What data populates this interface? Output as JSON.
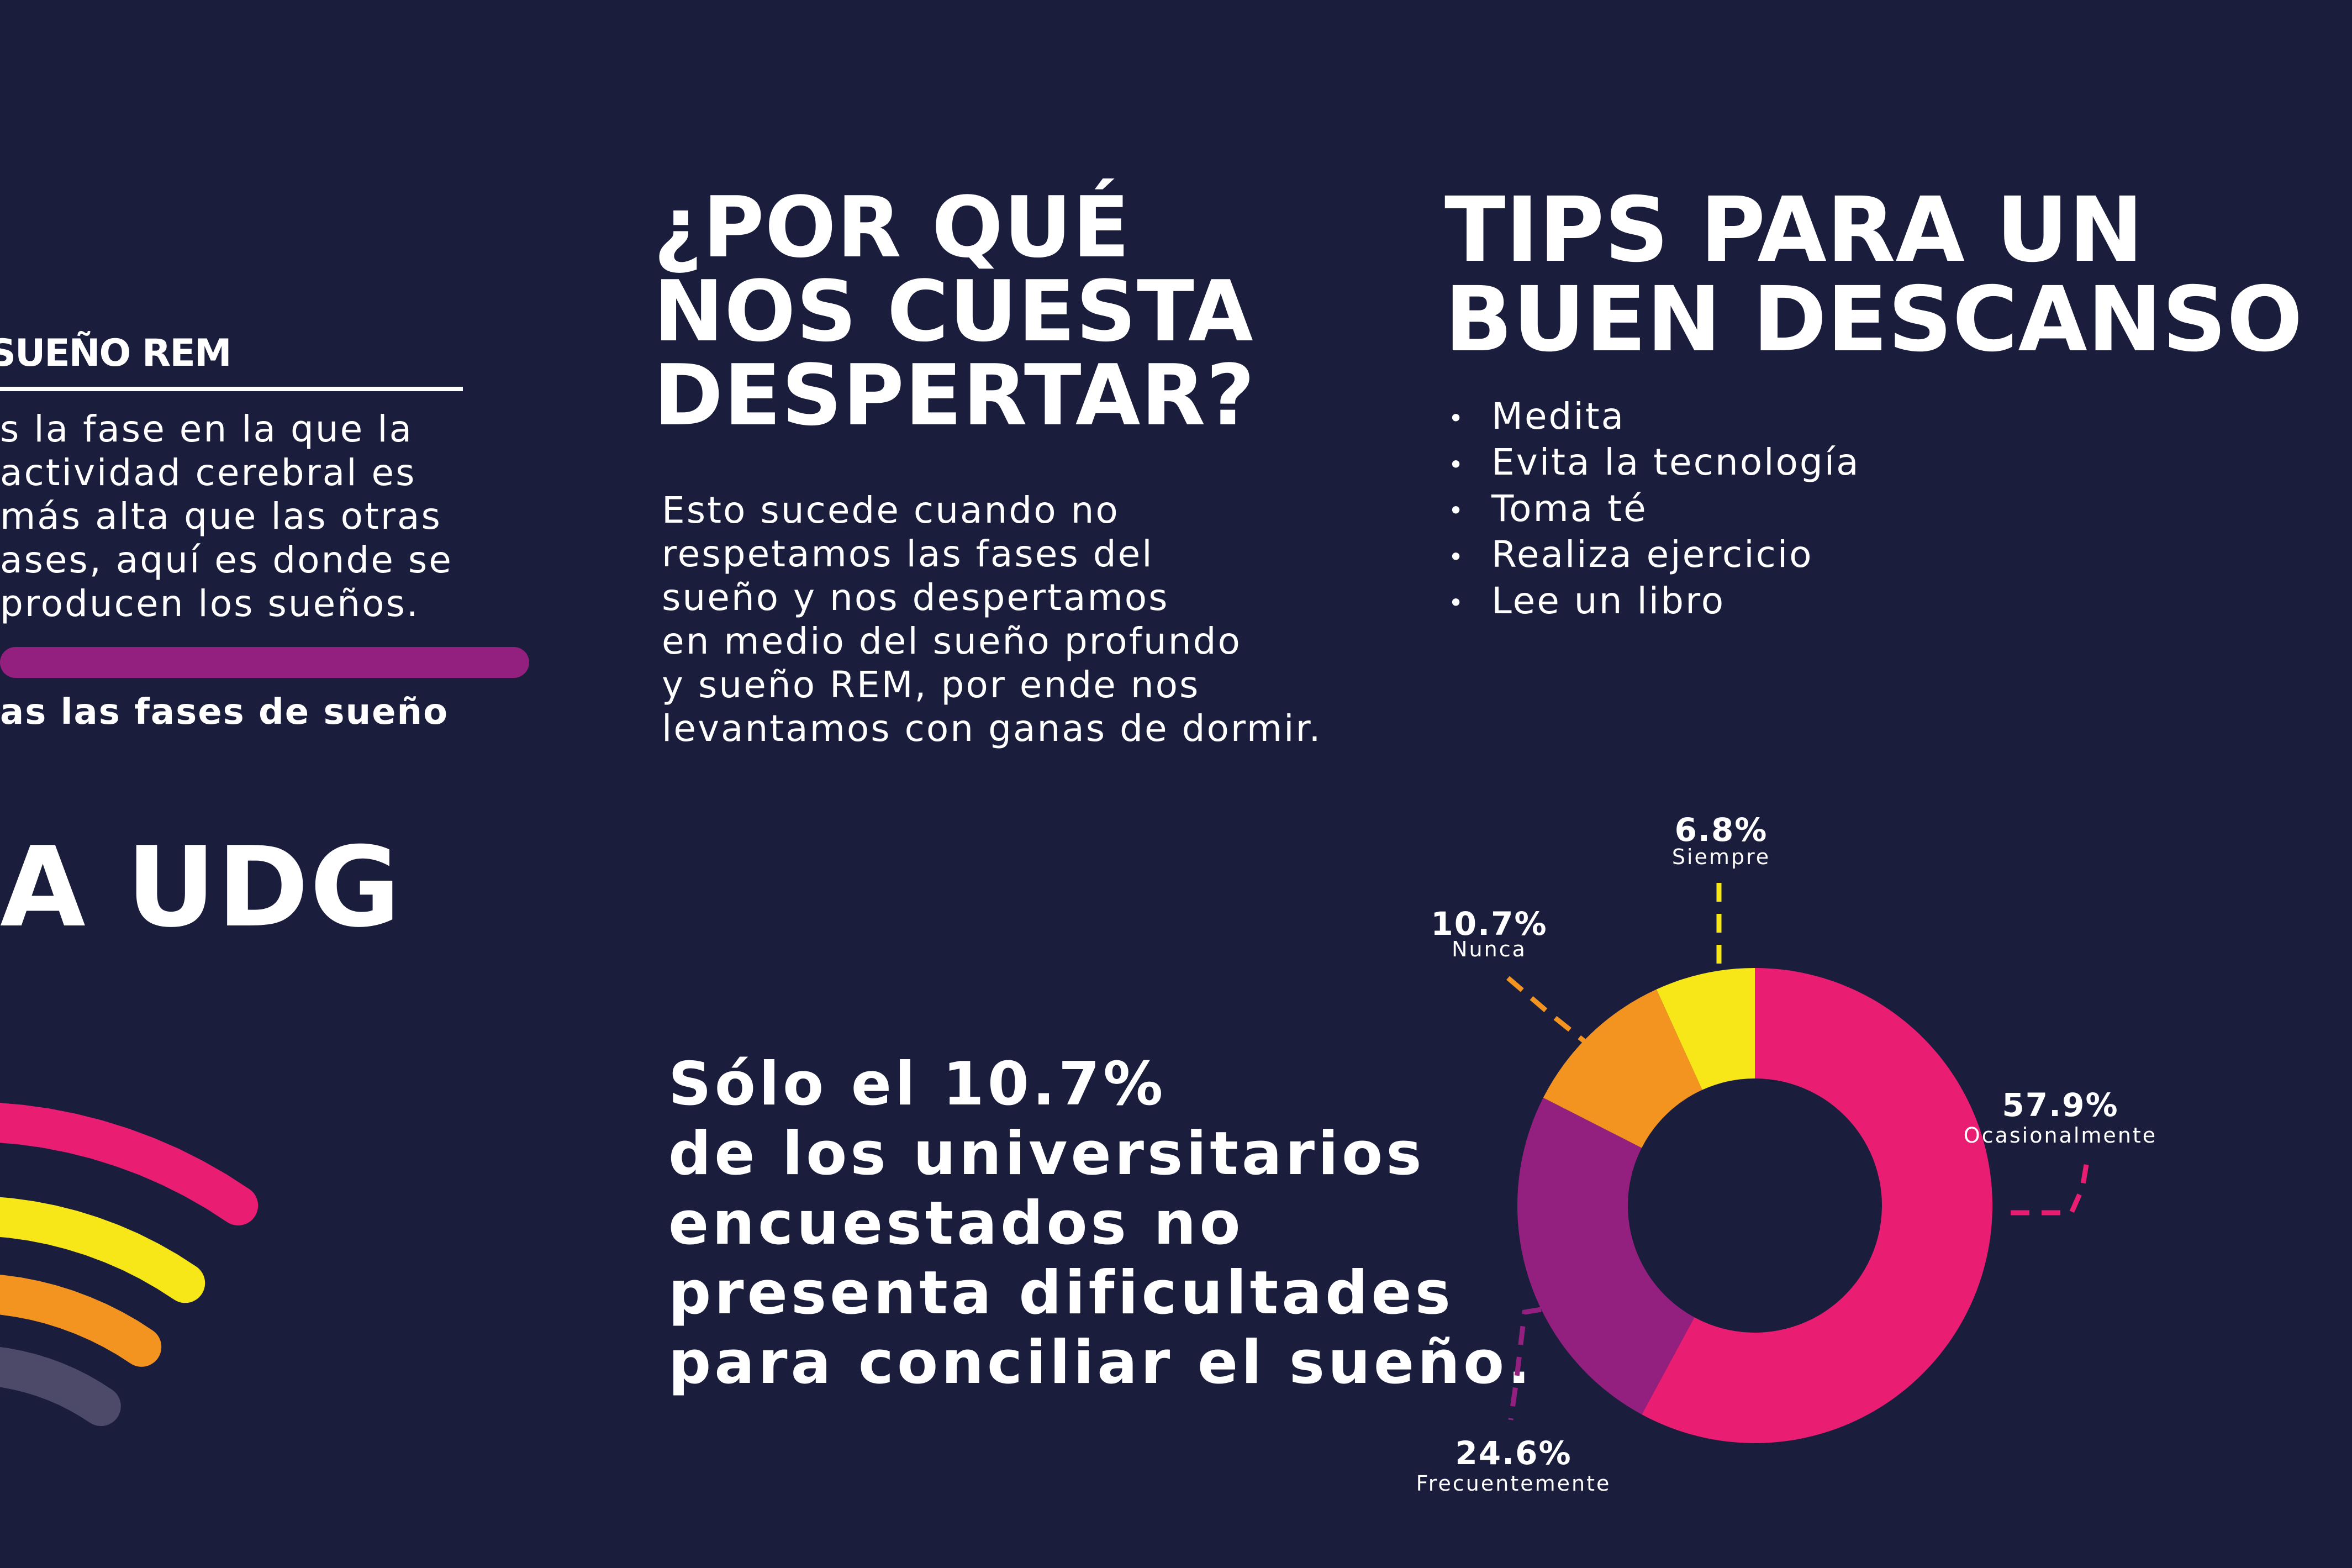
{
  "rem": {
    "title": "SUEÑO REM",
    "lines": [
      "s la fase en la que la",
      "actividad cerebral es",
      "más alta que las otras",
      "ases, aquí es donde se",
      "producen los sueños."
    ]
  },
  "phases_caption": "as las fases de sueño",
  "udg_title": "A UDG",
  "why": {
    "title": "¿POR QUÉ\nNOS CUESTA\nDESPERTAR?",
    "lines": [
      "Esto sucede cuando no",
      "respetamos las fases del",
      "sueño y nos despertamos",
      "en medio del sueño profundo",
      "y sueño REM, por ende nos",
      "levantamos con ganas de dormir."
    ]
  },
  "tips": {
    "title": "TIPS PARA UN\nBUEN DESCANSO",
    "bullet": "•",
    "items": [
      "Medita",
      "Evita la tecnología",
      "Toma té",
      "Realiza ejercicio",
      "Lee un libro"
    ]
  },
  "stat_lines": [
    "Sólo el 10.7%",
    "de los universitarios",
    "encuestados no",
    "presenta dificultades",
    "para conciliar el sueño."
  ],
  "arc_colors": [
    "#e91e73",
    "#f7e618",
    "#f39421",
    "#4d4968"
  ],
  "chart_data": {
    "type": "pie",
    "donut": true,
    "start": "top",
    "direction": "clockwise",
    "slices": [
      {
        "label": "Ocasionalmente",
        "value": 57.9,
        "value_label": "57.9%",
        "color": "#e91e73"
      },
      {
        "label": "Frecuentemente",
        "value": 24.6,
        "value_label": "24.6%",
        "color": "#93207e"
      },
      {
        "label": "Nunca",
        "value": 10.7,
        "value_label": "10.7%",
        "color": "#f39421"
      },
      {
        "label": "Siempre",
        "value": 6.8,
        "value_label": "6.8%",
        "color": "#f7e618"
      }
    ]
  }
}
